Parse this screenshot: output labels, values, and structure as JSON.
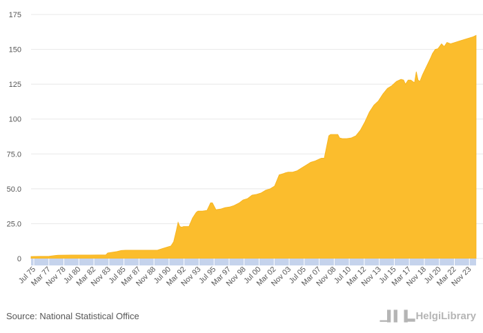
{
  "chart_data": {
    "type": "area",
    "x_tick_labels": [
      "Jul 75",
      "Mar 77",
      "Nov 78",
      "Jul 80",
      "Mar 82",
      "Nov 83",
      "Jul 85",
      "Mar 87",
      "Nov 88",
      "Jul 90",
      "Mar 92",
      "Nov 93",
      "Jul 95",
      "Mar 97",
      "Nov 98",
      "Jul 00",
      "Mar 02",
      "Nov 03",
      "Jul 05",
      "Mar 07",
      "Nov 08",
      "Jul 10",
      "Mar 12",
      "Nov 13",
      "Jul 15",
      "Mar 17",
      "Nov 18",
      "Jul 20",
      "Mar 22",
      "Nov 23"
    ],
    "y_tick_labels": [
      "0",
      "25.0",
      "50.0",
      "75.0",
      "100",
      "125",
      "150",
      "175"
    ],
    "y_ticks": [
      0,
      25,
      50,
      75,
      100,
      125,
      150,
      175
    ],
    "ylim": [
      0,
      175
    ],
    "xlim": [
      1975.5,
      2024.83
    ],
    "grid": true,
    "colors": {
      "fill": "#fbbd2d",
      "axis_band": "#c5d3ec",
      "grid": "#e8e8e8",
      "text": "#555555"
    },
    "x": [
      1975.5,
      1976.5,
      1977.5,
      1978.2,
      1978.5,
      1980,
      1981,
      1982,
      1983.8,
      1984,
      1985,
      1985.5,
      1986,
      1987,
      1988,
      1989,
      1989.5,
      1990,
      1990.5,
      1991,
      1991.3,
      1991.6,
      1991.8,
      1992,
      1992.2,
      1992.4,
      1993,
      1993.4,
      1993.8,
      1994,
      1994.5,
      1995,
      1995.4,
      1995.6,
      1996,
      1996.5,
      1997,
      1997.5,
      1998,
      1998.6,
      1999,
      1999.5,
      2000,
      2000.5,
      2001,
      2001.5,
      2002,
      2002.5,
      2003,
      2003.5,
      2003.7,
      2004,
      2004.5,
      2005,
      2005.5,
      2006,
      2006.5,
      2007,
      2007.5,
      2007.7,
      2008,
      2008.5,
      2008.7,
      2009,
      2009.5,
      2009.7,
      2010,
      2010.5,
      2011,
      2011.5,
      2012,
      2012.5,
      2013,
      2013.5,
      2014,
      2014.5,
      2015,
      2015.5,
      2016,
      2016.5,
      2016.8,
      2017,
      2017.3,
      2017.6,
      2018,
      2018.2,
      2018.4,
      2018.6,
      2018.9,
      2019.2,
      2019.5,
      2019.8,
      2020,
      2020.3,
      2020.6,
      2021,
      2021.3,
      2021.6,
      2022,
      2022.5,
      2023,
      2023.5,
      2024,
      2024.5,
      2024.83
    ],
    "values": [
      1.5,
      1.6,
      1.7,
      2.2,
      2.4,
      2.5,
      2.5,
      2.5,
      2.6,
      4,
      5,
      5.8,
      6,
      6,
      6,
      6,
      6,
      7,
      8,
      9,
      12,
      20,
      26,
      23,
      22.5,
      23,
      23,
      29,
      33,
      34,
      34,
      34.5,
      40,
      40,
      35,
      35.5,
      36.5,
      37,
      38,
      40,
      42,
      43,
      45.5,
      46,
      47,
      49,
      50,
      52,
      60,
      61,
      61.5,
      62,
      62,
      63,
      65,
      67,
      69,
      70,
      71.5,
      72,
      72,
      88,
      89,
      89,
      89,
      86.5,
      86,
      86,
      86.5,
      88,
      92,
      98,
      105,
      110,
      113,
      118,
      122,
      124,
      127,
      128.5,
      128,
      125,
      128,
      128,
      126,
      134,
      128,
      127,
      132,
      136,
      140,
      144,
      147,
      150,
      150.5,
      154,
      152,
      155,
      154,
      155,
      156,
      157,
      158,
      159,
      160
    ]
  },
  "footer": {
    "source": "Source: National Statistical Office",
    "logo_text": "HelgiLibrary",
    "logo_icon": "helgi-library-shelf-icon"
  }
}
